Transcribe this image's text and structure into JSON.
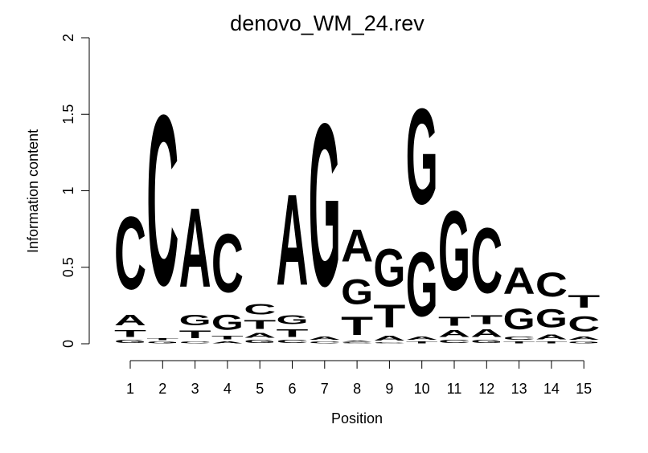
{
  "chart_data": {
    "type": "sequence-logo",
    "title": "denovo_WM_24.rev",
    "xlabel": "Position",
    "ylabel": "Information content",
    "ylim": [
      0,
      2
    ],
    "yticks": [
      0,
      0.5,
      1,
      1.5,
      2
    ],
    "yticklabels": [
      "0",
      "0.5",
      "1",
      "1.5",
      "2"
    ],
    "positions": [
      "1",
      "2",
      "3",
      "4",
      "5",
      "6",
      "7",
      "8",
      "9",
      "10",
      "11",
      "12",
      "13",
      "14",
      "15"
    ],
    "colors": {
      "A": "#00e000",
      "C": "#0000ff",
      "G": "#ffa500",
      "T": "#ff0000"
    },
    "stacks": [
      [
        {
          "letter": "G",
          "height": 0.03
        },
        {
          "letter": "T",
          "height": 0.07
        },
        {
          "letter": "A",
          "height": 0.11
        },
        {
          "letter": "C",
          "height": 0.76
        }
      ],
      [
        {
          "letter": "G",
          "height": 0.02
        },
        {
          "letter": "T",
          "height": 0.02
        },
        {
          "letter": "C",
          "height": 1.78
        }
      ],
      [
        {
          "letter": "C",
          "height": 0.02
        },
        {
          "letter": "T",
          "height": 0.08
        },
        {
          "letter": "G",
          "height": 0.11
        },
        {
          "letter": "A",
          "height": 0.83
        }
      ],
      [
        {
          "letter": "A",
          "height": 0.02
        },
        {
          "letter": "T",
          "height": 0.04
        },
        {
          "letter": "G",
          "height": 0.16
        },
        {
          "letter": "C",
          "height": 0.61
        }
      ],
      [
        {
          "letter": "G",
          "height": 0.03
        },
        {
          "letter": "A",
          "height": 0.05
        },
        {
          "letter": "T",
          "height": 0.09
        },
        {
          "letter": "C",
          "height": 0.11
        }
      ],
      [
        {
          "letter": "C",
          "height": 0.03
        },
        {
          "letter": "T",
          "height": 0.08
        },
        {
          "letter": "G",
          "height": 0.09
        },
        {
          "letter": "A",
          "height": 0.95
        }
      ],
      [
        {
          "letter": "C",
          "height": 0.02
        },
        {
          "letter": "A",
          "height": 0.03
        },
        {
          "letter": "G",
          "height": 1.7
        }
      ],
      [
        {
          "letter": "C",
          "height": 0.01
        },
        {
          "letter": "A",
          "height": 0.01
        },
        {
          "letter": "T",
          "height": 0.19
        },
        {
          "letter": "G",
          "height": 0.26
        },
        {
          "letter": "A",
          "height": 0.34
        }
      ],
      [
        {
          "letter": "C",
          "height": 0.01
        },
        {
          "letter": "A",
          "height": 0.05
        },
        {
          "letter": "T",
          "height": 0.24
        },
        {
          "letter": "G",
          "height": 0.39
        }
      ],
      [
        {
          "letter": "T",
          "height": 0.02
        },
        {
          "letter": "A",
          "height": 0.03
        },
        {
          "letter": "G",
          "height": 0.67
        },
        {
          "letter": "G",
          "height": 1.0
        }
      ],
      [
        {
          "letter": "C",
          "height": 0.03
        },
        {
          "letter": "A",
          "height": 0.07
        },
        {
          "letter": "T",
          "height": 0.09
        },
        {
          "letter": "G",
          "height": 0.83
        }
      ],
      [
        {
          "letter": "G",
          "height": 0.03
        },
        {
          "letter": "A",
          "height": 0.08
        },
        {
          "letter": "T",
          "height": 0.09
        },
        {
          "letter": "C",
          "height": 0.68
        }
      ],
      [
        {
          "letter": "T",
          "height": 0.02
        },
        {
          "letter": "C",
          "height": 0.03
        },
        {
          "letter": "G",
          "height": 0.22
        },
        {
          "letter": "A",
          "height": 0.28
        }
      ],
      [
        {
          "letter": "T",
          "height": 0.02
        },
        {
          "letter": "A",
          "height": 0.05
        },
        {
          "letter": "G",
          "height": 0.19
        },
        {
          "letter": "C",
          "height": 0.25
        }
      ],
      [
        {
          "letter": "G",
          "height": 0.02
        },
        {
          "letter": "A",
          "height": 0.03
        },
        {
          "letter": "C",
          "height": 0.16
        },
        {
          "letter": "T",
          "height": 0.13
        }
      ]
    ]
  }
}
